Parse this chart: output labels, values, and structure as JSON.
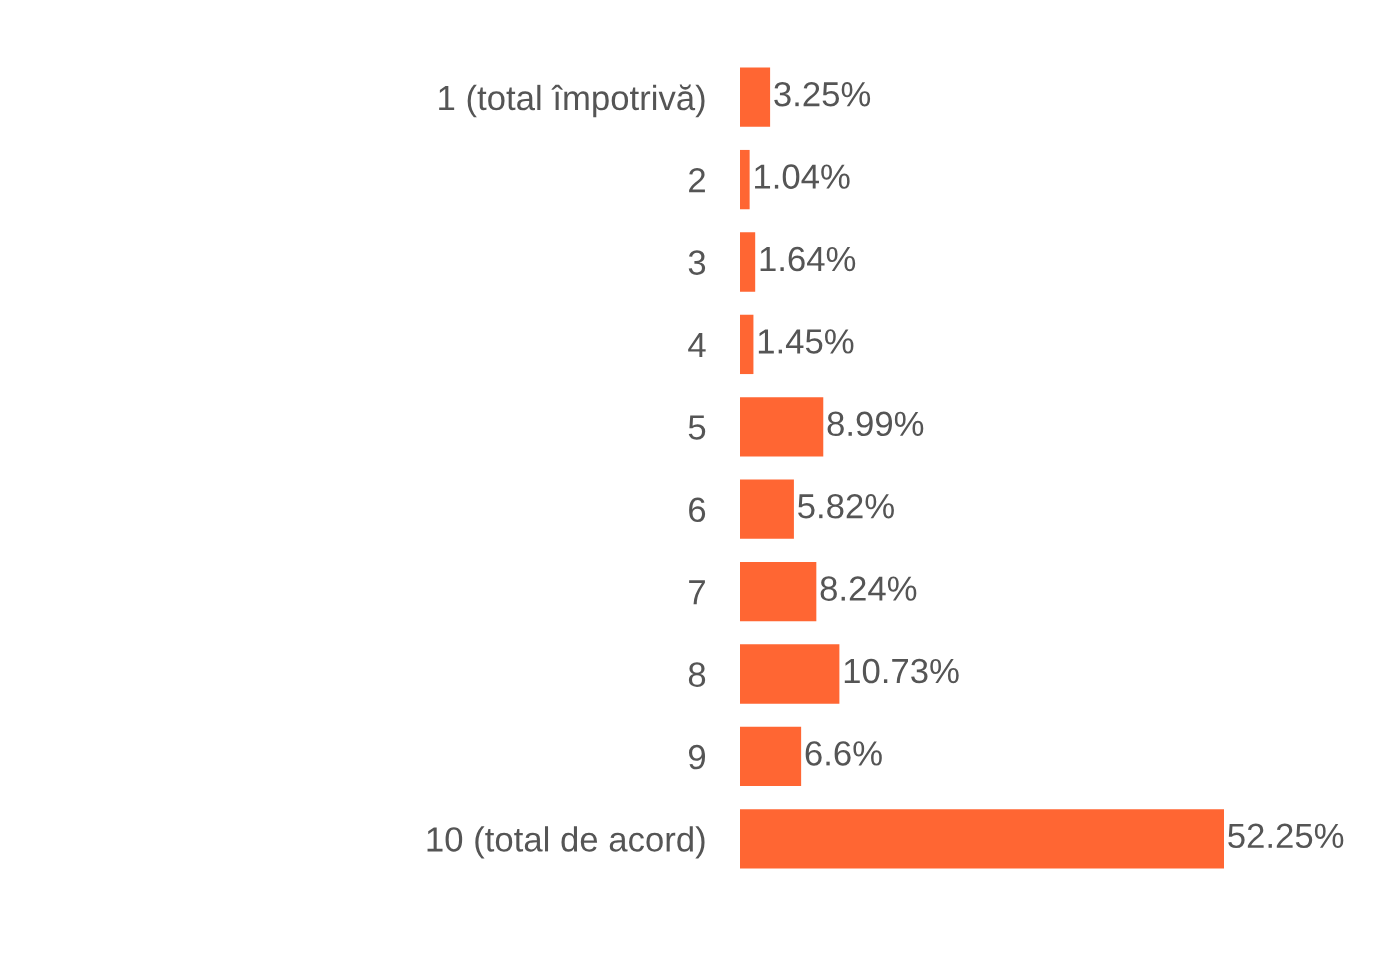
{
  "chart_data": {
    "type": "bar",
    "orientation": "horizontal",
    "categories": [
      "1 (total împotrivă)",
      "2",
      "3",
      "4",
      "5",
      "6",
      "7",
      "8",
      "9",
      "10 (total de acord)"
    ],
    "values": [
      3.25,
      1.04,
      1.64,
      1.45,
      8.99,
      5.82,
      8.24,
      10.73,
      6.6,
      52.25
    ],
    "value_labels": [
      "3.25%",
      "1.04%",
      "1.64%",
      "1.45%",
      "8.99%",
      "5.82%",
      "8.24%",
      "10.73%",
      "6.6%",
      "52.25%"
    ],
    "color": "#ff6633",
    "tick_labels": "y",
    "grid": false,
    "legend": false
  }
}
